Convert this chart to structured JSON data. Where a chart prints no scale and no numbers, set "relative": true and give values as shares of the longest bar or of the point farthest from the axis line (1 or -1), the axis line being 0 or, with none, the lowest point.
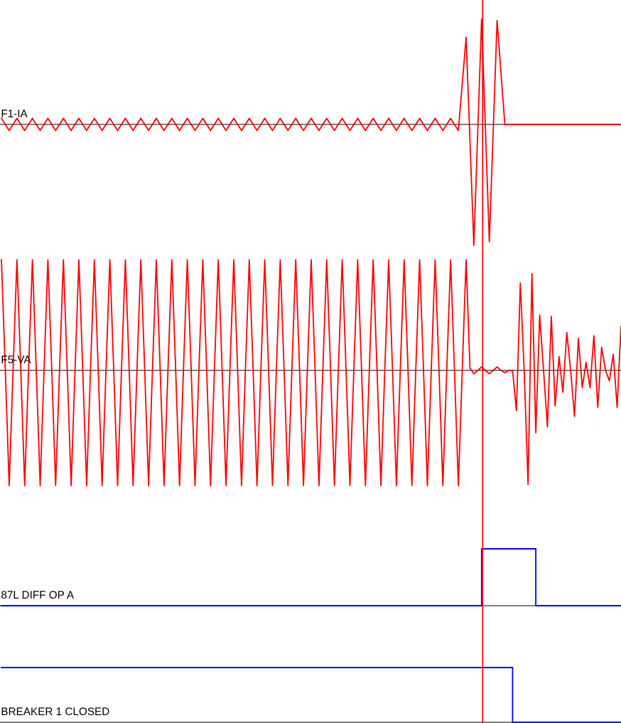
{
  "chart_data": [
    {
      "type": "line",
      "relative": true,
      "tick_labels": false,
      "categories": [
        null,
        null,
        null,
        null,
        null,
        null,
        null,
        null,
        null,
        null,
        null,
        null,
        null,
        null,
        null,
        null,
        null,
        null,
        null,
        null,
        null,
        null,
        null,
        null,
        null,
        null,
        null,
        null,
        null,
        null,
        null,
        null,
        null,
        null,
        null,
        null,
        null,
        null,
        null,
        null,
        null,
        null,
        null,
        null,
        null,
        null,
        null,
        null,
        null,
        null,
        null,
        null,
        null,
        null,
        null,
        null,
        null,
        null,
        null,
        null,
        null,
        null,
        null,
        null,
        null,
        null,
        null,
        null,
        null,
        null,
        null,
        null,
        null,
        null,
        null,
        null,
        null,
        null,
        null,
        null,
        null
      ],
      "series": [
        {
          "name": "F1-IA",
          "color": "#ff0000",
          "values": [
            0.05,
            -0.05,
            0.05,
            -0.05,
            0.05,
            -0.05,
            0.05,
            -0.05,
            0.05,
            -0.05,
            0.05,
            -0.05,
            0.05,
            -0.05,
            0.05,
            -0.05,
            0.05,
            -0.05,
            0.05,
            -0.05,
            0.05,
            -0.05,
            0.05,
            -0.05,
            0.05,
            -0.05,
            0.05,
            -0.05,
            0.05,
            -0.05,
            0.05,
            -0.05,
            0.05,
            -0.05,
            0.05,
            -0.05,
            0.05,
            -0.05,
            0.05,
            -0.05,
            0.05,
            -0.05,
            0.05,
            -0.05,
            0.05,
            -0.05,
            0.05,
            -0.05,
            0.05,
            -0.05,
            0.05,
            -0.05,
            0.05,
            -0.05,
            0.05,
            -0.05,
            0.05,
            -0.05,
            0.05,
            -0.05,
            0.72,
            -1,
            0.87,
            -0.97,
            0.86,
            0,
            0,
            0,
            0,
            0,
            0,
            0,
            0,
            0,
            0,
            0,
            0,
            0,
            0,
            0,
            0
          ]
        }
      ]
    },
    {
      "type": "line",
      "relative": true,
      "tick_labels": false,
      "categories": [
        null,
        null,
        null,
        null,
        null,
        null,
        null,
        null,
        null,
        null,
        null,
        null,
        null,
        null,
        null,
        null,
        null,
        null,
        null,
        null,
        null,
        null,
        null,
        null,
        null,
        null,
        null,
        null,
        null,
        null,
        null,
        null,
        null,
        null,
        null,
        null,
        null,
        null,
        null,
        null,
        null,
        null,
        null,
        null,
        null,
        null,
        null,
        null,
        null,
        null,
        null,
        null,
        null,
        null,
        null,
        null,
        null,
        null,
        null,
        null,
        null,
        null,
        null,
        null,
        null,
        null,
        null,
        null,
        null,
        null,
        null,
        null,
        null,
        null,
        null,
        null,
        null,
        null,
        null,
        null,
        null,
        null,
        null,
        null,
        null,
        null,
        null,
        null,
        null,
        null,
        null,
        null,
        null,
        null,
        null,
        null,
        null,
        null,
        null,
        null,
        null,
        null,
        null,
        null,
        null,
        null,
        null,
        null,
        null,
        null,
        null,
        null,
        null,
        null,
        null,
        null,
        null,
        null,
        null,
        null,
        null,
        null,
        null,
        null,
        null,
        null,
        null,
        null,
        null,
        null,
        null,
        null,
        null,
        null,
        null,
        null,
        null,
        null,
        null,
        null,
        null,
        null,
        null,
        null,
        null,
        null,
        null,
        null,
        null,
        null,
        null,
        null,
        null,
        null,
        null,
        null,
        null,
        null,
        null,
        null,
        null
      ],
      "series": [
        {
          "name": "F5-VA",
          "color": "#ff0000",
          "values": [
            0.96,
            0,
            -1,
            0,
            0.96,
            0,
            -1,
            0,
            0.96,
            0,
            -1,
            0,
            0.96,
            0,
            -1,
            0,
            0.96,
            0,
            -1,
            0,
            0.96,
            0,
            -1,
            0,
            0.96,
            0,
            -1,
            0,
            0.96,
            0,
            -1,
            0,
            0.96,
            0,
            -1,
            0,
            0.96,
            0,
            -1,
            0,
            0.96,
            0,
            -1,
            0,
            0.96,
            0,
            -1,
            0,
            0.96,
            0,
            -1,
            0,
            0.96,
            0,
            -1,
            0,
            0.96,
            0,
            -1,
            0,
            0.96,
            0,
            -1,
            0,
            0.96,
            0,
            -1,
            0,
            0.96,
            0,
            -1,
            0,
            0.96,
            0,
            -1,
            0,
            0.96,
            0,
            -1,
            0,
            0.96,
            0,
            -1,
            0,
            0.96,
            0,
            -1,
            0,
            0.96,
            0,
            -1,
            0,
            0.96,
            0,
            -1,
            0,
            0.96,
            0,
            -1,
            0,
            0.96,
            0,
            -1,
            0,
            0.96,
            0,
            -1,
            0,
            0.96,
            0,
            -1,
            0,
            0.96,
            0,
            -1,
            0,
            0.96,
            0,
            -1,
            0,
            0.96,
            0.02,
            -0.03,
            0,
            0.03,
            0,
            -0.03,
            0,
            0.03,
            0,
            -0.02,
            0,
            0,
            -0.35,
            0.76,
            0,
            -0.99,
            0.84,
            -0.54,
            0.48,
            0,
            -0.49,
            0.47,
            -0.31,
            0.12,
            -0.19,
            0.33,
            0,
            -0.4,
            0.28,
            -0.15,
            0.07,
            -0.15,
            0.3,
            -0.32,
            0.2,
            0,
            -0.09,
            0.14,
            -0.32,
            0.38
          ]
        }
      ]
    },
    {
      "type": "step",
      "relative": true,
      "tick_labels": false,
      "categories": [
        null,
        null,
        null,
        null,
        null,
        null,
        null,
        null,
        null,
        null,
        null,
        null,
        null,
        null,
        null,
        null,
        null,
        null,
        null,
        null,
        null,
        null,
        null,
        null,
        null,
        null,
        null,
        null,
        null,
        null,
        null,
        null,
        null,
        null,
        null,
        null,
        null,
        null,
        null,
        null,
        null,
        null,
        null,
        null,
        null,
        null,
        null,
        null,
        null,
        null,
        null,
        null,
        null,
        null,
        null,
        null,
        null,
        null,
        null,
        null,
        null,
        null,
        null,
        null,
        null,
        null,
        null,
        null,
        null,
        null,
        null,
        null,
        null,
        null,
        null,
        null,
        null,
        null,
        null,
        null,
        null
      ],
      "series": [
        {
          "name": "87L DIFF OP A",
          "color": "#0000ff",
          "values": [
            0,
            0,
            0,
            0,
            0,
            0,
            0,
            0,
            0,
            0,
            0,
            0,
            0,
            0,
            0,
            0,
            0,
            0,
            0,
            0,
            0,
            0,
            0,
            0,
            0,
            0,
            0,
            0,
            0,
            0,
            0,
            0,
            0,
            0,
            0,
            0,
            0,
            0,
            0,
            0,
            0,
            0,
            0,
            0,
            0,
            0,
            0,
            0,
            0,
            0,
            0,
            0,
            0,
            0,
            0,
            0,
            0,
            0,
            0,
            0,
            0,
            0,
            1,
            1,
            1,
            1,
            1,
            1,
            1,
            0,
            0,
            0,
            0,
            0,
            0,
            0,
            0,
            0,
            0,
            0,
            0
          ]
        }
      ]
    },
    {
      "type": "step",
      "relative": true,
      "tick_labels": false,
      "categories": [
        null,
        null,
        null,
        null,
        null,
        null,
        null,
        null,
        null,
        null,
        null,
        null,
        null,
        null,
        null,
        null,
        null,
        null,
        null,
        null,
        null,
        null,
        null,
        null,
        null,
        null,
        null,
        null,
        null,
        null,
        null,
        null,
        null,
        null,
        null,
        null,
        null,
        null,
        null,
        null,
        null,
        null,
        null,
        null,
        null,
        null,
        null,
        null,
        null,
        null,
        null,
        null,
        null,
        null,
        null,
        null,
        null,
        null,
        null,
        null,
        null,
        null,
        null,
        null,
        null,
        null,
        null,
        null,
        null,
        null,
        null,
        null,
        null,
        null,
        null,
        null,
        null,
        null,
        null,
        null,
        null
      ],
      "series": [
        {
          "name": "BREAKER 1 CLOSED",
          "color": "#0000ff",
          "values": [
            1,
            1,
            1,
            1,
            1,
            1,
            1,
            1,
            1,
            1,
            1,
            1,
            1,
            1,
            1,
            1,
            1,
            1,
            1,
            1,
            1,
            1,
            1,
            1,
            1,
            1,
            1,
            1,
            1,
            1,
            1,
            1,
            1,
            1,
            1,
            1,
            1,
            1,
            1,
            1,
            1,
            1,
            1,
            1,
            1,
            1,
            1,
            1,
            1,
            1,
            1,
            1,
            1,
            1,
            1,
            1,
            1,
            1,
            1,
            1,
            1,
            1,
            1,
            1,
            1,
            1,
            0,
            0,
            0,
            0,
            0,
            0,
            0,
            0,
            0,
            0,
            0,
            0,
            0,
            0,
            0
          ]
        }
      ]
    }
  ]
}
